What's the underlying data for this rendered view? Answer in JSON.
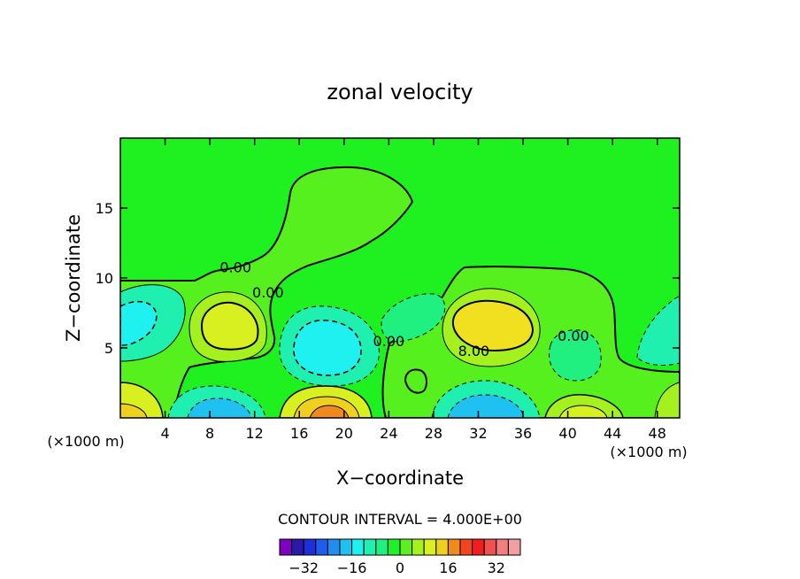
{
  "chart_data": {
    "type": "contour",
    "title": "zonal velocity",
    "xlabel": "X−coordinate",
    "ylabel": "Z−coordinate",
    "x_unit_left": "(×1000 m)",
    "x_unit_right": "(×1000 m)",
    "xlim": [
      0,
      50
    ],
    "ylim": [
      0,
      20
    ],
    "x_ticks": [
      4,
      8,
      12,
      16,
      20,
      24,
      28,
      32,
      36,
      40,
      44,
      48
    ],
    "y_ticks": [
      5,
      10,
      15
    ],
    "contour_interval_text": "CONTOUR INTERVAL = 4.000E+00",
    "contour_labels": [
      {
        "text": "0.00",
        "x": 10.3,
        "y": 10.8
      },
      {
        "text": "0.00",
        "x": 13.2,
        "y": 9.0
      },
      {
        "text": "0.00",
        "x": 24.0,
        "y": 5.5
      },
      {
        "text": "8.00",
        "x": 31.6,
        "y": 4.8
      },
      {
        "text": "0.00",
        "x": 40.5,
        "y": 5.9
      }
    ],
    "features": [
      {
        "kind": "max",
        "x": 9.8,
        "y": 6.3,
        "value": 10
      },
      {
        "kind": "min",
        "x": 1.2,
        "y": 6.8,
        "value": -8
      },
      {
        "kind": "min",
        "x": 18.0,
        "y": 5.2,
        "value": -12
      },
      {
        "kind": "max",
        "x": 33.2,
        "y": 7.0,
        "value": 14
      },
      {
        "kind": "min",
        "x": 26.5,
        "y": 7.2,
        "value": -4
      },
      {
        "kind": "min",
        "x": 40.2,
        "y": 4.6,
        "value": -4
      },
      {
        "kind": "min",
        "x": 49.5,
        "y": 5.8,
        "value": -6
      },
      {
        "kind": "min",
        "x": 8.5,
        "y": 0.5,
        "value": -14
      },
      {
        "kind": "max",
        "x": 18.2,
        "y": 0.5,
        "value": 24
      },
      {
        "kind": "min",
        "x": 33.0,
        "y": 1.0,
        "value": -14
      },
      {
        "kind": "max",
        "x": 40.5,
        "y": 0.5,
        "value": 14
      },
      {
        "kind": "max",
        "x": 0.8,
        "y": 0.6,
        "value": 16
      }
    ],
    "colorbar": {
      "levels": [
        -32,
        -28,
        -24,
        -20,
        -16,
        -12,
        -8,
        -4,
        0,
        4,
        8,
        12,
        16,
        20,
        24,
        28,
        32
      ],
      "tick_labels": [
        "−32",
        "−16",
        "0",
        "16",
        "32"
      ],
      "tick_values": [
        -32,
        -16,
        0,
        16,
        32
      ],
      "colors": [
        "#7f00bf",
        "#2a1aa8",
        "#1f2fd8",
        "#1f5cf0",
        "#1f8ef0",
        "#1fc1f0",
        "#1ff0f0",
        "#1ff0b0",
        "#1ff080",
        "#1ff02a",
        "#5cf01f",
        "#a5f01f",
        "#d8f01f",
        "#f0d01f",
        "#f08a1f",
        "#f0451f",
        "#f01f1f",
        "#f05050",
        "#f08080",
        "#f0a0a0"
      ]
    },
    "background_color": "#00f000"
  }
}
